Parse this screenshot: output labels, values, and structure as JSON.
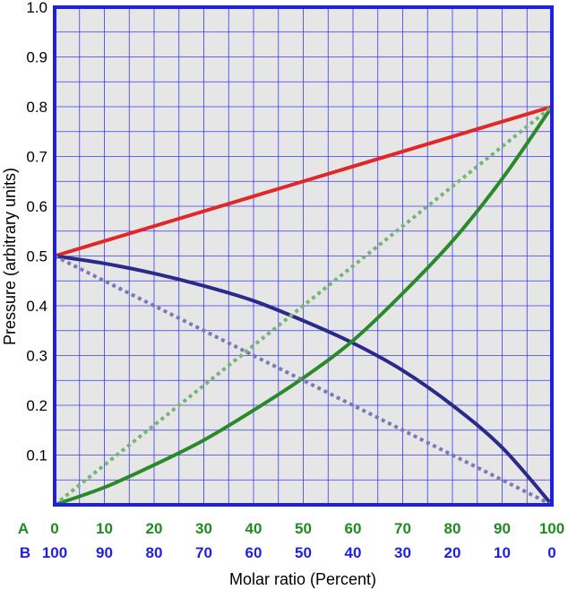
{
  "chart_data": {
    "type": "line",
    "title": "",
    "xlabel": "Molar ratio (Percent)",
    "ylabel": "Pressure (arbitrary units)",
    "xlim": [
      0,
      100
    ],
    "ylim": [
      0,
      1.0
    ],
    "grid": true,
    "legend": "none",
    "y_ticks": [
      "0.1",
      "0.2",
      "0.3",
      "0.4",
      "0.5",
      "0.6",
      "0.7",
      "0.8",
      "0.9",
      "1.0"
    ],
    "x_ticks_A": {
      "label": "A",
      "color": "#1e8c1e",
      "values": [
        "0",
        "10",
        "20",
        "30",
        "40",
        "50",
        "60",
        "70",
        "80",
        "90",
        "100"
      ]
    },
    "x_ticks_B": {
      "label": "B",
      "color": "#1f1fe0",
      "values": [
        "100",
        "90",
        "80",
        "70",
        "60",
        "50",
        "40",
        "30",
        "20",
        "10",
        "0"
      ]
    },
    "colors": {
      "plot_bg": "#e6e6e6",
      "frame": "#1f1fe0",
      "grid": "#3a3af0"
    },
    "series": [
      {
        "color": "#e02828",
        "style": "solid",
        "x": [
          0,
          100
        ],
        "y": [
          0.5,
          0.8
        ]
      },
      {
        "color": "#2a2a8a",
        "style": "solid",
        "x": [
          0,
          10,
          20,
          30,
          40,
          50,
          60,
          70,
          80,
          90,
          100
        ],
        "y": [
          0.5,
          0.485,
          0.465,
          0.44,
          0.41,
          0.37,
          0.325,
          0.27,
          0.2,
          0.115,
          0.0
        ]
      },
      {
        "color": "#2a8a2a",
        "style": "solid",
        "x": [
          0,
          10,
          20,
          30,
          40,
          50,
          60,
          70,
          80,
          90,
          100
        ],
        "y": [
          0.0,
          0.035,
          0.08,
          0.13,
          0.19,
          0.255,
          0.33,
          0.425,
          0.53,
          0.655,
          0.8
        ]
      },
      {
        "color": "#7a7ab8",
        "style": "dotted",
        "x": [
          0,
          100
        ],
        "y": [
          0.5,
          0.0
        ]
      },
      {
        "color": "#78b478",
        "style": "dotted",
        "x": [
          0,
          100
        ],
        "y": [
          0.0,
          0.8
        ]
      }
    ]
  }
}
